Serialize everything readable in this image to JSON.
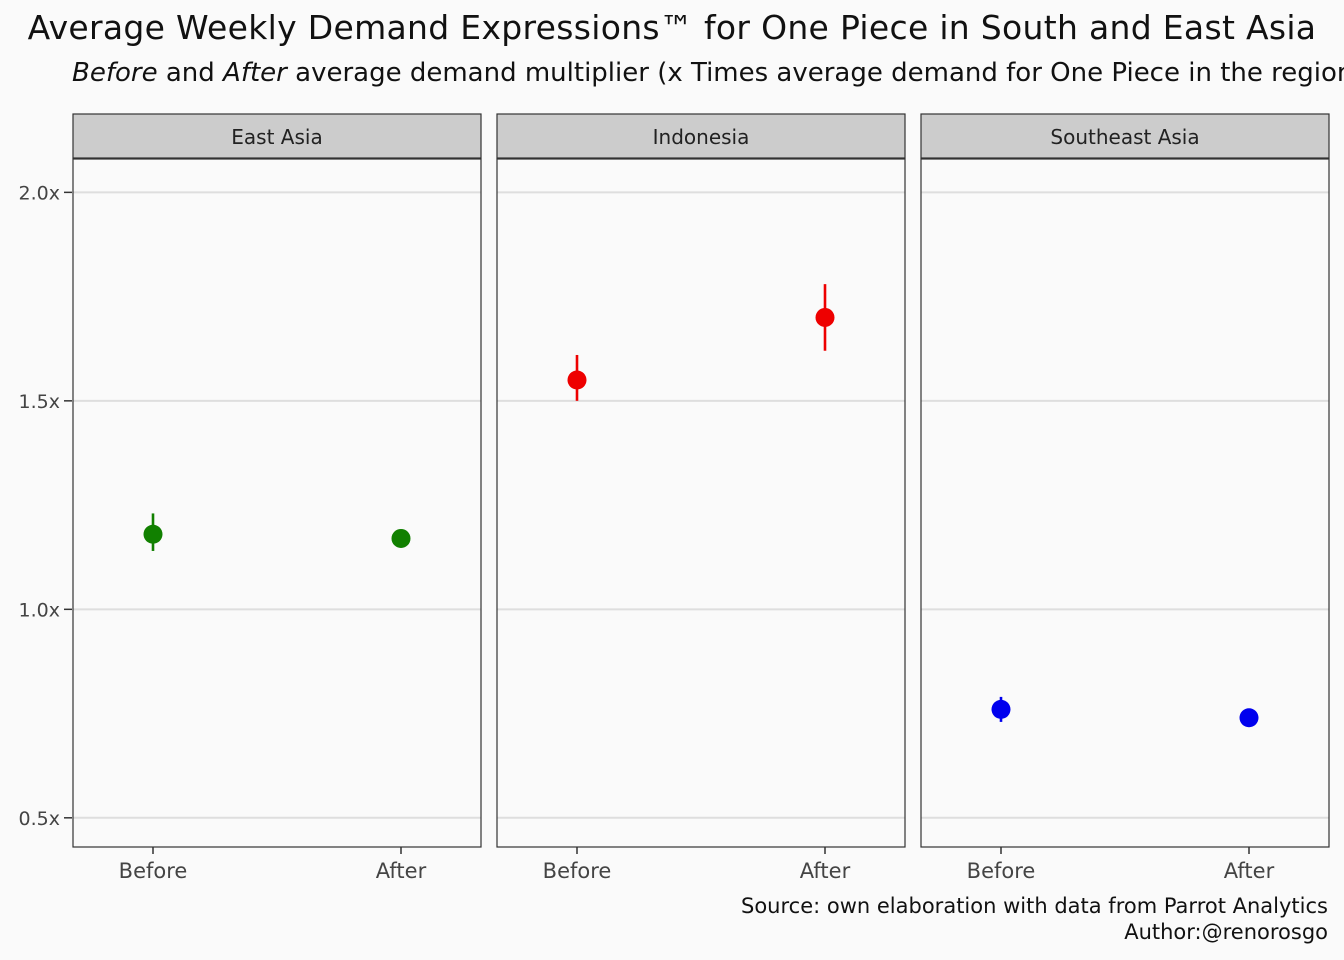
{
  "title": "Average Weekly Demand Expressions™ for One Piece in South and East Asia",
  "subtitle": {
    "before_word": "Before",
    "and_word": " and ",
    "after_word": "After",
    "rest": " average demand multiplier (x Times average demand for One Piece in the region)"
  },
  "caption": {
    "source": "Source: own elaboration with data from Parrot Analytics",
    "author": "Author:@renorosgo"
  },
  "chart_data": {
    "type": "scatter",
    "facets": [
      "East Asia",
      "Indonesia",
      "Southeast Asia"
    ],
    "categories": [
      "Before",
      "After"
    ],
    "y_tick_labels": [
      "0.5x",
      "1.0x",
      "1.5x",
      "2.0x"
    ],
    "y_ticks": [
      0.5,
      1.0,
      1.5,
      2.0
    ],
    "ylim": [
      0.43,
      2.08
    ],
    "grid": "horizontal",
    "series": [
      {
        "facet": "East Asia",
        "color": "#118000",
        "points": [
          {
            "x": "Before",
            "y": 1.18,
            "low": 1.14,
            "high": 1.23
          },
          {
            "x": "After",
            "y": 1.17,
            "low": 1.15,
            "high": 1.19
          }
        ]
      },
      {
        "facet": "Indonesia",
        "color": "#ee0000",
        "points": [
          {
            "x": "Before",
            "y": 1.55,
            "low": 1.5,
            "high": 1.61
          },
          {
            "x": "After",
            "y": 1.7,
            "low": 1.62,
            "high": 1.78
          }
        ]
      },
      {
        "facet": "Southeast Asia",
        "color": "#0000ee",
        "points": [
          {
            "x": "Before",
            "y": 0.76,
            "low": 0.73,
            "high": 0.79
          },
          {
            "x": "After",
            "y": 0.74,
            "low": 0.73,
            "high": 0.75
          }
        ]
      }
    ]
  }
}
